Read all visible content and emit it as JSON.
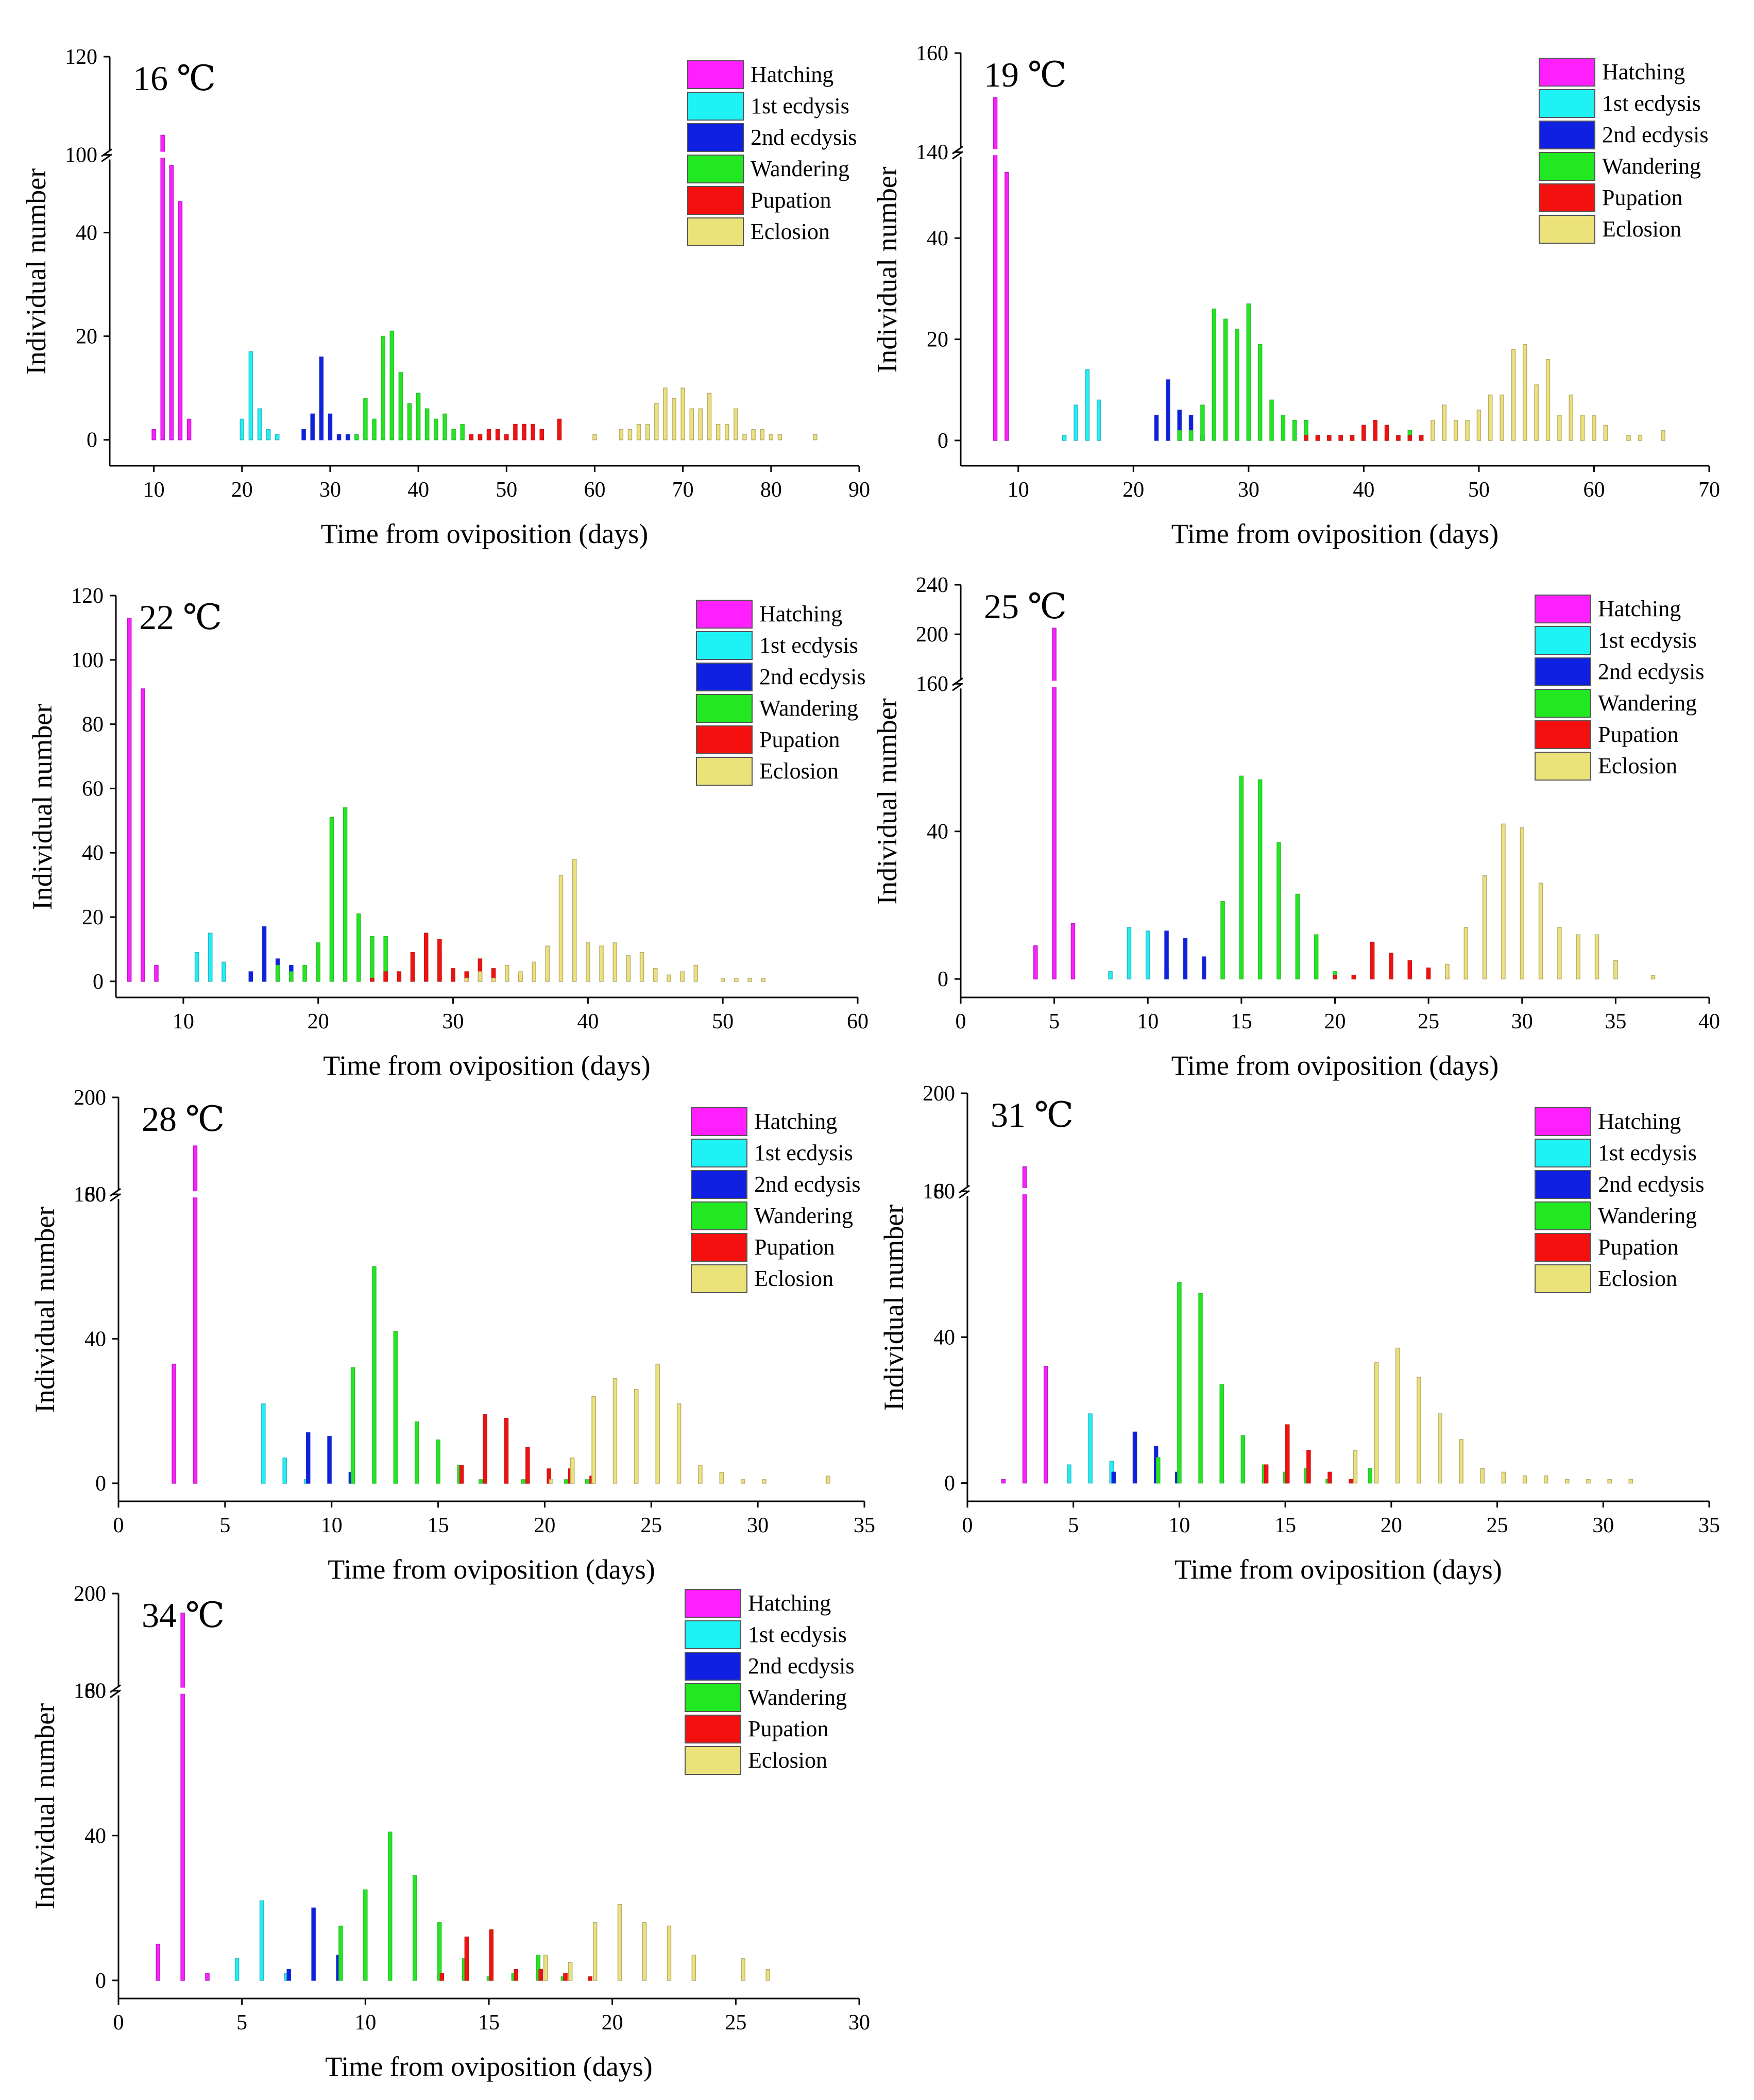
{
  "legend_items": [
    {
      "label": "Hatching",
      "color": "#ff1fff"
    },
    {
      "label": "1st ecdysis",
      "color": "#1ff2f5"
    },
    {
      "label": "2nd ecdysis",
      "color": "#1020e0"
    },
    {
      "label": "Wandering",
      "color": "#22e822"
    },
    {
      "label": "Pupation",
      "color": "#f51010"
    },
    {
      "label": "Eclosion",
      "color": "#ece27a"
    }
  ],
  "stroke_colors": {
    "Hatching": "#b41ec4",
    "1st ecdysis": "#33b5c6",
    "2nd ecdysis": "#1b2ec8",
    "Wandering": "#2fbf2f",
    "Pupation": "#c81818",
    "Eclosion": "#b8ac72"
  },
  "chart_data": [
    {
      "type": "bar",
      "title": "16 ℃",
      "xlabel": "Time from oviposition (days)",
      "ylabel": "Individual number",
      "xlim": [
        5,
        90
      ],
      "xticks": [
        10,
        20,
        30,
        40,
        50,
        60,
        70,
        80,
        90
      ],
      "ylim": [
        -5,
        120
      ],
      "axis_break": {
        "lower_top": 55,
        "upper_start": 100
      },
      "yticks": [
        0,
        20,
        40,
        100,
        120
      ],
      "series": [
        {
          "name": "Hatching",
          "x": [
            10,
            11,
            12,
            13,
            14
          ],
          "values": [
            2,
            104,
            53,
            46,
            4
          ]
        },
        {
          "name": "1st ecdysis",
          "x": [
            20,
            21,
            22,
            23,
            24
          ],
          "values": [
            4,
            17,
            6,
            2,
            1
          ]
        },
        {
          "name": "2nd ecdysis",
          "x": [
            27,
            28,
            29,
            30,
            31,
            32,
            33
          ],
          "values": [
            2,
            5,
            16,
            5,
            1,
            1,
            1
          ]
        },
        {
          "name": "Wandering",
          "x": [
            33,
            34,
            35,
            36,
            37,
            38,
            39,
            40,
            41,
            42,
            43,
            44,
            45,
            46,
            47,
            48,
            49,
            50
          ],
          "values": [
            1,
            8,
            4,
            20,
            21,
            13,
            7,
            9,
            6,
            4,
            5,
            2,
            3,
            1,
            1,
            1,
            2,
            1
          ]
        },
        {
          "name": "Pupation",
          "x": [
            46,
            47,
            48,
            49,
            50,
            51,
            52,
            53,
            54,
            56
          ],
          "values": [
            1,
            1,
            2,
            2,
            1,
            3,
            3,
            3,
            2,
            4
          ]
        },
        {
          "name": "Eclosion",
          "x": [
            60,
            63,
            64,
            65,
            66,
            67,
            68,
            69,
            70,
            71,
            72,
            73,
            74,
            75,
            76,
            77,
            78,
            79,
            80,
            81,
            85
          ],
          "values": [
            1,
            2,
            2,
            3,
            3,
            7,
            10,
            8,
            10,
            6,
            6,
            9,
            3,
            3,
            6,
            1,
            2,
            2,
            1,
            1,
            1
          ]
        }
      ]
    },
    {
      "type": "bar",
      "title": "19 ℃",
      "xlabel": "Time from oviposition (days)",
      "ylabel": "Individual number",
      "xlim": [
        5,
        70
      ],
      "xticks": [
        10,
        20,
        30,
        40,
        50,
        60,
        70
      ],
      "ylim": [
        -5,
        160
      ],
      "axis_break": {
        "lower_top": 57,
        "upper_start": 140
      },
      "yticks": [
        0,
        20,
        40,
        140,
        160
      ],
      "series": [
        {
          "name": "Hatching",
          "x": [
            8,
            9
          ],
          "values": [
            151,
            53
          ]
        },
        {
          "name": "1st ecdysis",
          "x": [
            14,
            15,
            16,
            17
          ],
          "values": [
            1,
            7,
            14,
            8
          ]
        },
        {
          "name": "2nd ecdysis",
          "x": [
            22,
            23,
            24,
            25,
            26
          ],
          "values": [
            5,
            12,
            6,
            5,
            1
          ]
        },
        {
          "name": "Wandering",
          "x": [
            24,
            25,
            26,
            27,
            28,
            29,
            30,
            31,
            32,
            33,
            34,
            35,
            36,
            37,
            38,
            39,
            40,
            41,
            42,
            43,
            44,
            45
          ],
          "values": [
            2,
            2,
            7,
            26,
            24,
            22,
            27,
            19,
            8,
            5,
            4,
            4,
            1,
            1,
            1,
            1,
            1,
            1,
            1,
            1,
            2,
            1
          ]
        },
        {
          "name": "Pupation",
          "x": [
            35,
            36,
            37,
            38,
            39,
            40,
            41,
            42,
            43,
            44,
            45
          ],
          "values": [
            1,
            1,
            1,
            1,
            1,
            3,
            4,
            3,
            1,
            1,
            1
          ]
        },
        {
          "name": "Eclosion",
          "x": [
            46,
            47,
            48,
            49,
            50,
            51,
            52,
            53,
            54,
            55,
            56,
            57,
            58,
            59,
            60,
            61,
            63,
            64,
            66
          ],
          "values": [
            4,
            7,
            4,
            4,
            6,
            9,
            9,
            18,
            19,
            11,
            16,
            5,
            9,
            5,
            5,
            3,
            1,
            1,
            2
          ]
        }
      ]
    },
    {
      "type": "bar",
      "title": "22 ℃",
      "xlabel": "Time from oviposition (days)",
      "ylabel": "Individual number",
      "xlim": [
        5,
        60
      ],
      "xticks": [
        10,
        20,
        30,
        40,
        50,
        60
      ],
      "ylim": [
        -5,
        120
      ],
      "yticks": [
        0,
        20,
        40,
        60,
        80,
        100,
        120
      ],
      "series": [
        {
          "name": "Hatching",
          "x": [
            6,
            7,
            8
          ],
          "values": [
            113,
            91,
            5
          ]
        },
        {
          "name": "1st ecdysis",
          "x": [
            11,
            12,
            13
          ],
          "values": [
            9,
            15,
            6
          ]
        },
        {
          "name": "2nd ecdysis",
          "x": [
            15,
            16,
            17,
            18
          ],
          "values": [
            3,
            17,
            7,
            5
          ]
        },
        {
          "name": "Wandering",
          "x": [
            17,
            18,
            19,
            20,
            21,
            22,
            23,
            24,
            25,
            26,
            27,
            28,
            29,
            30,
            31,
            32
          ],
          "values": [
            5,
            3,
            5,
            12,
            51,
            54,
            21,
            14,
            14,
            3,
            2,
            4,
            9,
            2,
            2,
            1
          ]
        },
        {
          "name": "Pupation",
          "x": [
            24,
            25,
            26,
            27,
            28,
            29,
            30,
            31,
            32,
            33,
            34,
            35,
            36,
            37,
            39
          ],
          "values": [
            1,
            3,
            3,
            9,
            15,
            13,
            4,
            3,
            7,
            4,
            3,
            2,
            1,
            1,
            1
          ]
        },
        {
          "name": "Eclosion",
          "x": [
            31,
            32,
            33,
            34,
            35,
            36,
            37,
            38,
            39,
            40,
            41,
            42,
            43,
            44,
            45,
            46,
            47,
            48,
            50,
            51,
            52,
            53
          ],
          "values": [
            1,
            3,
            1,
            5,
            3,
            6,
            11,
            33,
            38,
            12,
            11,
            12,
            8,
            9,
            4,
            2,
            3,
            5,
            1,
            1,
            1,
            1
          ]
        }
      ]
    },
    {
      "type": "bar",
      "title": "25 ℃",
      "xlabel": "Time from oviposition (days)",
      "ylabel": "Individual number",
      "xlim": [
        0,
        40
      ],
      "xticks": [
        0,
        5,
        10,
        15,
        20,
        25,
        30,
        35,
        40
      ],
      "ylim": [
        -5,
        240
      ],
      "axis_break": {
        "lower_top": 80,
        "upper_start": 160
      },
      "yticks": [
        0,
        40,
        160,
        200,
        240
      ],
      "series": [
        {
          "name": "Hatching",
          "x": [
            4,
            5,
            6
          ],
          "values": [
            9,
            205,
            15
          ]
        },
        {
          "name": "1st ecdysis",
          "x": [
            8,
            9,
            10,
            11
          ],
          "values": [
            2,
            14,
            13,
            3
          ]
        },
        {
          "name": "2nd ecdysis",
          "x": [
            11,
            12,
            13
          ],
          "values": [
            13,
            11,
            6
          ]
        },
        {
          "name": "Wandering",
          "x": [
            14,
            15,
            16,
            17,
            18,
            19,
            20
          ],
          "values": [
            21,
            55,
            54,
            37,
            23,
            12,
            2
          ]
        },
        {
          "name": "Pupation",
          "x": [
            20,
            21,
            22,
            23,
            24,
            25,
            26,
            27
          ],
          "values": [
            1,
            1,
            10,
            7,
            5,
            3,
            1,
            1
          ]
        },
        {
          "name": "Eclosion",
          "x": [
            26,
            27,
            28,
            29,
            30,
            31,
            32,
            33,
            34,
            35,
            37
          ],
          "values": [
            4,
            14,
            28,
            42,
            41,
            26,
            14,
            12,
            12,
            5,
            1
          ]
        }
      ]
    },
    {
      "type": "bar",
      "title": "28 ℃",
      "xlabel": "Time from oviposition (days)",
      "ylabel": "Individual number",
      "xlim": [
        0,
        35
      ],
      "xticks": [
        0,
        5,
        10,
        15,
        20,
        25,
        30,
        35
      ],
      "ylim": [
        -5,
        200
      ],
      "axis_break": {
        "lower_top": 80,
        "upper_start": 160
      },
      "yticks": [
        0,
        40,
        80,
        160,
        200
      ],
      "series": [
        {
          "name": "Hatching",
          "x": [
            2.6,
            3.6
          ],
          "values": [
            33,
            180
          ]
        },
        {
          "name": "1st ecdysis",
          "x": [
            6.8,
            7.8,
            8.8
          ],
          "values": [
            22,
            7,
            1
          ]
        },
        {
          "name": "2nd ecdysis",
          "x": [
            8.9,
            9.9,
            10.9
          ],
          "values": [
            14,
            13,
            3
          ]
        },
        {
          "name": "Wandering",
          "x": [
            11,
            12,
            13,
            14,
            15,
            16,
            17,
            19,
            21,
            22
          ],
          "values": [
            32,
            60,
            42,
            17,
            12,
            5,
            1,
            1,
            1,
            1
          ]
        },
        {
          "name": "Pupation",
          "x": [
            16.1,
            17.2,
            18.2,
            19.2,
            20.2,
            21.2,
            22.2
          ],
          "values": [
            5,
            19,
            18,
            10,
            4,
            4,
            2
          ]
        },
        {
          "name": "Eclosion",
          "x": [
            20.3,
            21.3,
            22.3,
            23.3,
            24.3,
            25.3,
            26.3,
            27.3,
            28.3,
            29.3,
            30.3,
            33.3
          ],
          "values": [
            1,
            7,
            24,
            29,
            26,
            33,
            22,
            5,
            3,
            1,
            1,
            2
          ]
        }
      ]
    },
    {
      "type": "bar",
      "title": "31 ℃",
      "xlabel": "Time from oviposition (days)",
      "ylabel": "Individual number",
      "xlim": [
        0,
        35
      ],
      "xticks": [
        0,
        5,
        10,
        15,
        20,
        25,
        30,
        35
      ],
      "ylim": [
        -5,
        200
      ],
      "axis_break": {
        "lower_top": 80,
        "upper_start": 160
      },
      "yticks": [
        0,
        40,
        80,
        160,
        200
      ],
      "series": [
        {
          "name": "Hatching",
          "x": [
            1.7,
            2.7,
            3.7
          ],
          "values": [
            1,
            170,
            32
          ]
        },
        {
          "name": "1st ecdysis",
          "x": [
            4.8,
            5.8,
            6.8
          ],
          "values": [
            5,
            19,
            6
          ]
        },
        {
          "name": "2nd ecdysis",
          "x": [
            6.9,
            7.9,
            8.9,
            9.9
          ],
          "values": [
            3,
            14,
            10,
            3
          ]
        },
        {
          "name": "Wandering",
          "x": [
            9,
            10,
            11,
            12,
            13,
            14,
            15,
            16,
            17,
            19
          ],
          "values": [
            7,
            55,
            52,
            27,
            13,
            5,
            3,
            4,
            1,
            4
          ]
        },
        {
          "name": "Pupation",
          "x": [
            14.1,
            15.1,
            16.1,
            17.1,
            18.1
          ],
          "values": [
            5,
            16,
            9,
            3,
            1
          ]
        },
        {
          "name": "Eclosion",
          "x": [
            18.3,
            19.3,
            20.3,
            21.3,
            22.3,
            23.3,
            24.3,
            25.3,
            26.3,
            27.3,
            28.3,
            29.3,
            30.3,
            31.3
          ],
          "values": [
            9,
            33,
            37,
            29,
            19,
            12,
            4,
            3,
            2,
            2,
            1,
            1,
            1,
            1
          ]
        }
      ]
    },
    {
      "type": "bar",
      "title": "34 ℃",
      "xlabel": "Time from oviposition (days)",
      "ylabel": "Individual number",
      "xlim": [
        0,
        30
      ],
      "xticks": [
        0,
        5,
        10,
        15,
        20,
        25,
        30
      ],
      "ylim": [
        -5,
        200
      ],
      "axis_break": {
        "lower_top": 80,
        "upper_start": 160
      },
      "yticks": [
        0,
        40,
        80,
        160,
        200
      ],
      "series": [
        {
          "name": "Hatching",
          "x": [
            1.6,
            2.6,
            3.6
          ],
          "values": [
            10,
            192,
            2
          ]
        },
        {
          "name": "1st ecdysis",
          "x": [
            4.8,
            5.8,
            6.8
          ],
          "values": [
            6,
            22,
            2
          ]
        },
        {
          "name": "2nd ecdysis",
          "x": [
            6.9,
            7.9,
            8.9
          ],
          "values": [
            3,
            20,
            7
          ]
        },
        {
          "name": "Wandering",
          "x": [
            9,
            10,
            11,
            12,
            13,
            14,
            15,
            16,
            17,
            18
          ],
          "values": [
            15,
            25,
            41,
            29,
            16,
            6,
            1,
            2,
            7,
            1
          ]
        },
        {
          "name": "Pupation",
          "x": [
            13.1,
            14.1,
            15.1,
            16.1,
            17.1,
            18.1,
            19.1
          ],
          "values": [
            2,
            12,
            14,
            3,
            3,
            2,
            1
          ]
        },
        {
          "name": "Eclosion",
          "x": [
            17.3,
            18.3,
            19.3,
            20.3,
            21.3,
            22.3,
            23.3,
            25.3,
            26.3
          ],
          "values": [
            7,
            5,
            16,
            21,
            16,
            15,
            7,
            6,
            3
          ]
        }
      ]
    }
  ]
}
